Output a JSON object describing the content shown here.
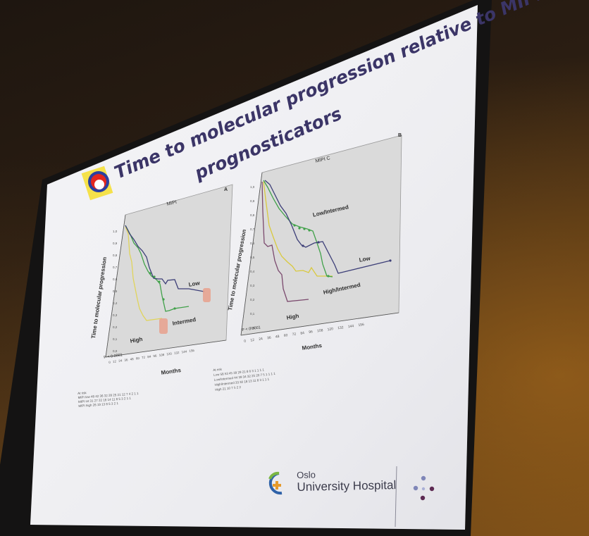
{
  "slide": {
    "title_line1": "Time to molecular progression relative to MIPI",
    "title_line2": "prognosticators"
  },
  "panel_a": {
    "letter": "A",
    "header": "MIPI",
    "y_axis_label": "Time to molecular progression",
    "x_axis_label": "Months",
    "p_value": "P < 0.0001",
    "labels": {
      "low": "Low",
      "intermed": "Intermed",
      "high": "High"
    },
    "y_ticks": [
      "1,0",
      "0,9",
      "0,8",
      "0,7",
      "0,6",
      "0,5",
      "0,4",
      "0,3",
      "0,2",
      "0,1",
      "0,0"
    ],
    "x_ticks": [
      "0",
      "12",
      "24",
      "36",
      "48",
      "60",
      "72",
      "84",
      "96",
      "108",
      "120",
      "132",
      "144",
      "156"
    ],
    "risk_table": {
      "header": "At risk",
      "rows": [
        {
          "label": "MIPI low",
          "values": "48 42 36 32 28 25 21 12 7 4 2 1 1"
        },
        {
          "label": "MIPI int",
          "values": "31 27 22 18 14 11 8 5 3 2 1 1"
        },
        {
          "label": "MIPI high",
          "values": "26 19 13 8 5 3 2 1"
        },
        {
          "label": "",
          "values": ""
        }
      ]
    },
    "series": [
      {
        "name": "Low",
        "color": "#3d3f78"
      },
      {
        "name": "Intermed",
        "color": "#41a14a"
      },
      {
        "name": "High",
        "color": "#e0d45c"
      }
    ]
  },
  "panel_b": {
    "letter": "B",
    "header": "MIPI C",
    "y_axis_label": "Time to molecular progression",
    "x_axis_label": "Months",
    "p_value": "P < 0.0001",
    "labels": {
      "low_intermed": "Low/Intermed",
      "low": "Low",
      "high_intermed": "High/Intermed",
      "high": "High"
    },
    "y_ticks": [
      "1,0",
      "0,9",
      "0,8",
      "0,7",
      "0,6",
      "0,5",
      "0,4",
      "0,3",
      "0,2",
      "0,1",
      "0,0"
    ],
    "x_ticks": [
      "0",
      "12",
      "24",
      "36",
      "48",
      "60",
      "72",
      "84",
      "96",
      "108",
      "120",
      "132",
      "144",
      "156"
    ],
    "risk_table": {
      "header": "At risk",
      "rows": [
        {
          "label": "Low",
          "values": "58 53 45 39 29 21 8 6 3 1 1 1 1"
        },
        {
          "label": "Low/Intermed",
          "values": "44 39 34 32 25 20 7 5 1 1 1 1"
        },
        {
          "label": "High/Intermed",
          "values": "33 30 18 13 11 8 3 1 1 1"
        },
        {
          "label": "High",
          "values": "21 10 7 5 2 2"
        }
      ]
    },
    "series": [
      {
        "name": "Low",
        "color": "#3d3f78"
      },
      {
        "name": "Low/Intermed",
        "color": "#41a14a"
      },
      {
        "name": "High/Intermed",
        "color": "#d9c93e"
      },
      {
        "name": "High",
        "color": "#7b4a6e"
      }
    ]
  },
  "footer": {
    "org_line1": "Oslo",
    "org_line2": "University Hospital"
  },
  "colors": {
    "slide_bg": "#f3f3f6",
    "title": "#3b3567",
    "plot_bg": "#dcdcdc",
    "room": "#2a1d12"
  }
}
